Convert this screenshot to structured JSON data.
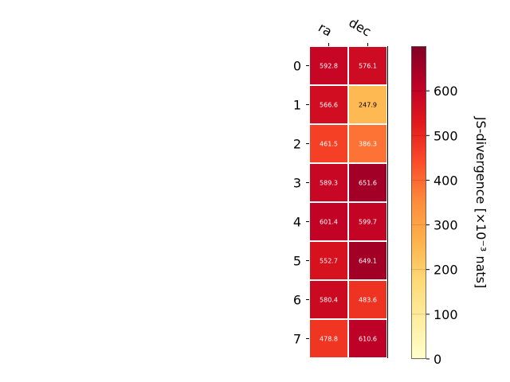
{
  "chart_data": {
    "type": "heatmap",
    "x_categories": [
      "ra",
      "dec"
    ],
    "y_categories": [
      "0",
      "1",
      "2",
      "3",
      "4",
      "5",
      "6",
      "7"
    ],
    "values": [
      [
        592.8,
        576.1
      ],
      [
        566.6,
        247.9
      ],
      [
        461.5,
        386.3
      ],
      [
        589.3,
        651.6
      ],
      [
        601.4,
        599.7
      ],
      [
        552.7,
        649.1
      ],
      [
        580.4,
        483.6
      ],
      [
        478.8,
        610.6
      ]
    ],
    "value_labels": [
      [
        "592.8",
        "576.1"
      ],
      [
        "566.6",
        "247.9"
      ],
      [
        "461.5",
        "386.3"
      ],
      [
        "589.3",
        "651.6"
      ],
      [
        "601.4",
        "599.7"
      ],
      [
        "552.7",
        "649.1"
      ],
      [
        "580.4",
        "483.6"
      ],
      [
        "478.8",
        "610.6"
      ]
    ],
    "colormap": "YlOrRd",
    "colorbar": {
      "label": "JS-divergence [×10⁻³ nats]",
      "range": [
        0,
        700
      ],
      "ticks": [
        0,
        100,
        200,
        300,
        400,
        500,
        600
      ],
      "tick_labels": [
        "0",
        "100",
        "200",
        "300",
        "400",
        "500",
        "600"
      ]
    }
  }
}
